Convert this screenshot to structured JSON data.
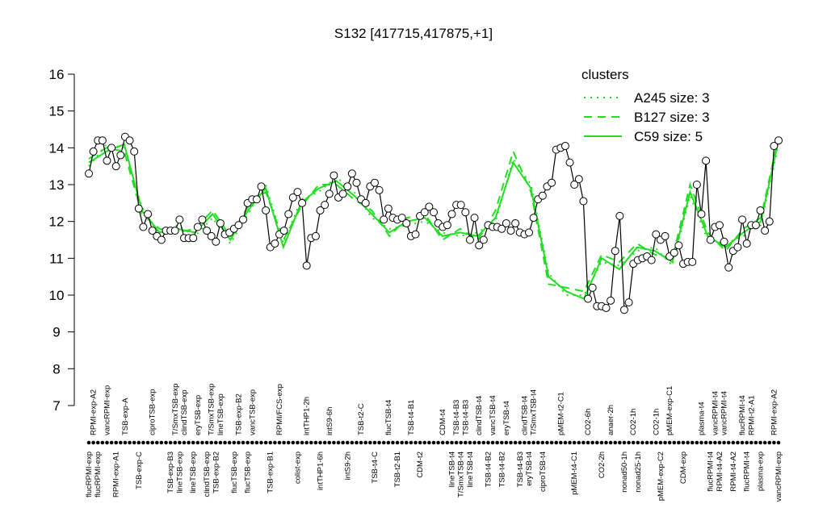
{
  "chart_data": {
    "type": "line",
    "title": "S132 [417715,417875,+1]",
    "ylim": [
      7,
      16
    ],
    "yticks": [
      7,
      8,
      9,
      10,
      11,
      12,
      13,
      14,
      15,
      16
    ],
    "categories": [
      "flucRPMI-exp",
      "RPMI-exp-A2",
      "flucRPMI-exp",
      null,
      "vancRPMI-exp",
      null,
      "RPMI-exp-A1",
      null,
      "TSB-exp-A",
      null,
      null,
      "TSB-exp-C",
      null,
      null,
      "ciproTSB-exp",
      null,
      null,
      null,
      "TSB-exp-B3",
      "T/SmxTSB-exp",
      "lineTSB-exp",
      "clindTSB-exp",
      null,
      "lineTSB-exp",
      "eryTSB-exp",
      null,
      "clindTSB-exp",
      "T/SmxTSB-exp",
      "TSB-exp-B2",
      "lineTSB-exp",
      null,
      null,
      "flucTSB-exp",
      "TSB-exp-B2",
      null,
      "flucTSB-exp",
      "vancTSB-exp",
      null,
      null,
      null,
      "TSB-exp-B1",
      null,
      "RPMI/FCS-exp",
      null,
      null,
      null,
      "colist-exp",
      null,
      "intTHP1-2h",
      null,
      null,
      "intTHP1-6h",
      null,
      "intS9-6h",
      null,
      null,
      null,
      "intS9-2h",
      null,
      null,
      "TSB-t2-C",
      null,
      null,
      "TSB-t4-C",
      null,
      null,
      "flucTSB-t4",
      null,
      "TSB-t2-B1",
      null,
      null,
      "TSB-t4-B1",
      null,
      "CDM-t2",
      null,
      null,
      null,
      null,
      "CDM-t4",
      null,
      "lineTSB-t4",
      "TSB-t4-B3",
      "T/SmxTSB-t4",
      "TSB-t4-B3",
      "lineTSB-t4",
      null,
      "clindTSB-t4",
      null,
      "TSB-t4-B2",
      "vancTSB-t4",
      null,
      "TSB-t4-B2",
      "eryTSB-t4",
      null,
      null,
      "TSB-t4-B3",
      "clindTSB-t4",
      "eryTSB-t4",
      "T/SmxTSB-t4",
      null,
      "ciproTSB-t4",
      null,
      null,
      null,
      "pMEM-t2-C1",
      null,
      null,
      "pMEM-t4-C1",
      null,
      null,
      "CO2-6h",
      null,
      null,
      "CO2-2h",
      null,
      "anaer-2h",
      null,
      null,
      "nonad50-1h",
      null,
      "CO2-1h",
      "nonad25-1h",
      null,
      null,
      null,
      "CO2-1h",
      "pMEM-exp-C2",
      null,
      "pMEM-exp-C1",
      null,
      null,
      "CDM-exp",
      null,
      null,
      null,
      "plasma-t4",
      null,
      "flucRPMI-t4",
      "vancRPMI-t4",
      "RPMI-t4-A2",
      "vancRPMI-t4",
      null,
      "RPMI-t4-A2",
      null,
      "flucRPMI-t4",
      "flucRPMI-t4",
      "RPMI-t2-A1",
      null,
      "plasma-exp",
      null,
      null,
      "RPMI-exp-A2",
      "vancRPMI-exp"
    ],
    "values": [
      13.3,
      13.9,
      14.2,
      14.2,
      13.65,
      14.0,
      13.5,
      13.8,
      14.3,
      14.2,
      13.9,
      12.35,
      11.85,
      12.2,
      11.75,
      11.6,
      11.5,
      11.75,
      11.75,
      11.75,
      12.05,
      11.55,
      11.55,
      11.55,
      11.85,
      12.05,
      11.75,
      11.6,
      11.45,
      11.95,
      11.65,
      11.7,
      11.8,
      11.9,
      12.05,
      12.5,
      12.6,
      12.6,
      12.95,
      12.3,
      11.3,
      11.4,
      11.65,
      11.75,
      12.2,
      12.65,
      12.8,
      12.5,
      10.8,
      11.55,
      11.6,
      12.3,
      12.45,
      12.75,
      13.25,
      12.65,
      12.75,
      12.95,
      13.3,
      13.05,
      12.6,
      12.5,
      12.95,
      13.05,
      12.85,
      12.05,
      12.35,
      12.1,
      12.05,
      12.1,
      11.95,
      11.6,
      11.65,
      12.15,
      12.25,
      12.4,
      12.25,
      11.95,
      11.85,
      11.9,
      12.2,
      12.45,
      12.45,
      12.25,
      11.5,
      12.1,
      11.35,
      11.5,
      11.9,
      11.85,
      11.85,
      11.8,
      11.95,
      11.75,
      11.95,
      11.7,
      11.65,
      11.7,
      12.1,
      12.6,
      12.7,
      12.95,
      13.05,
      13.95,
      14.0,
      14.05,
      13.6,
      13.0,
      13.15,
      12.55,
      9.9,
      10.2,
      9.7,
      9.7,
      9.65,
      9.85,
      11.2,
      12.15,
      9.6,
      9.8,
      10.85,
      10.95,
      11.0,
      11.05,
      10.95,
      11.65,
      11.5,
      11.6,
      11.05,
      11.15,
      11.35,
      10.85,
      10.9,
      10.9,
      13.0,
      12.2,
      13.65,
      11.5,
      11.85,
      11.9,
      11.45,
      10.75,
      11.2,
      11.3,
      12.05,
      11.4,
      11.9,
      11.9,
      12.3,
      11.75,
      12.0,
      14.05,
      14.2
    ],
    "color": "#000000",
    "legend": {
      "title": "clusters",
      "position": "top-right",
      "color": "#22dd22"
    },
    "clusters": [
      {
        "name": "A245 size: 3",
        "style": "dotted",
        "color": "#22dd22",
        "values": [
          13.5,
          14.1,
          14.0,
          12.4,
          11.6,
          11.9,
          11.6,
          12.1,
          11.4,
          12.2,
          13.0,
          11.4,
          12.6,
          12.8,
          13.2,
          12.8,
          12.1,
          11.8,
          11.9,
          12.0,
          11.7,
          11.6,
          11.7,
          12.0,
          13.7,
          13.0,
          10.6,
          10.0,
          10.0,
          10.9,
          10.8,
          11.2,
          11.3,
          10.8,
          12.7,
          11.5,
          11.4,
          11.6,
          11.9,
          14.1
        ]
      },
      {
        "name": "B127 size: 3",
        "style": "dashed",
        "color": "#22dd22",
        "values": [
          13.7,
          14.0,
          13.9,
          12.2,
          11.8,
          11.7,
          11.8,
          12.3,
          11.6,
          12.4,
          12.8,
          11.5,
          12.4,
          13.0,
          13.0,
          12.6,
          12.3,
          11.6,
          12.1,
          12.2,
          11.5,
          11.8,
          11.5,
          12.3,
          13.9,
          12.8,
          10.3,
          10.2,
          10.1,
          11.1,
          10.9,
          11.4,
          11.1,
          11.0,
          13.0,
          11.7,
          11.2,
          11.8,
          12.1,
          14.3
        ]
      },
      {
        "name": "C59 size: 5",
        "style": "solid",
        "color": "#22dd22",
        "values": [
          13.6,
          13.9,
          14.1,
          12.3,
          11.7,
          11.8,
          11.7,
          12.2,
          11.5,
          12.3,
          12.9,
          11.3,
          12.5,
          12.9,
          13.1,
          12.7,
          12.2,
          11.7,
          12.0,
          12.1,
          11.6,
          11.7,
          11.6,
          12.1,
          13.6,
          12.9,
          10.5,
          10.1,
          9.9,
          11.0,
          10.7,
          11.3,
          11.2,
          10.9,
          12.8,
          11.6,
          11.3,
          11.7,
          12.0,
          14.2
        ]
      }
    ]
  }
}
